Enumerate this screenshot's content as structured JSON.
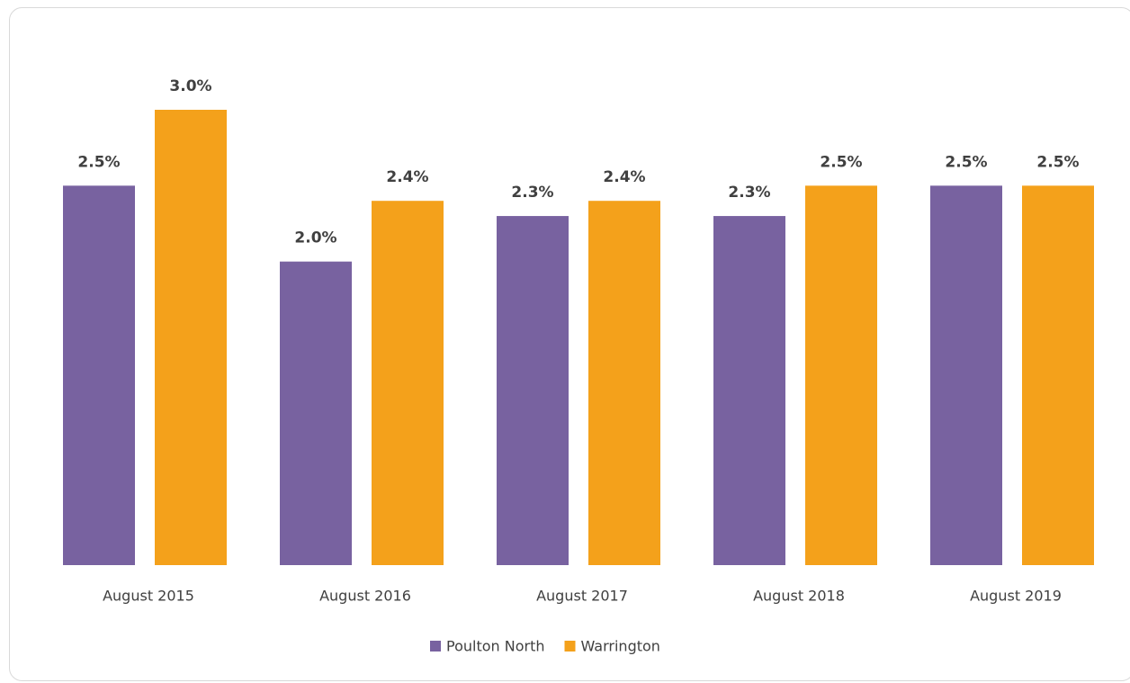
{
  "chart_data": {
    "type": "bar",
    "categories": [
      "August 2015",
      "August 2016",
      "August 2017",
      "August 2018",
      "August 2019"
    ],
    "series": [
      {
        "name": "Poulton North",
        "color": "#7862a0",
        "values": [
          2.5,
          2.0,
          2.3,
          2.3,
          2.5
        ],
        "value_labels": [
          "2.5%",
          "2.0%",
          "2.3%",
          "2.3%",
          "2.5%"
        ]
      },
      {
        "name": "Warrington",
        "color": "#f4a11b",
        "values": [
          3.0,
          2.4,
          2.4,
          2.5,
          2.5
        ],
        "value_labels": [
          "3.0%",
          "2.4%",
          "2.4%",
          "2.5%",
          "2.5%"
        ]
      }
    ]
  }
}
